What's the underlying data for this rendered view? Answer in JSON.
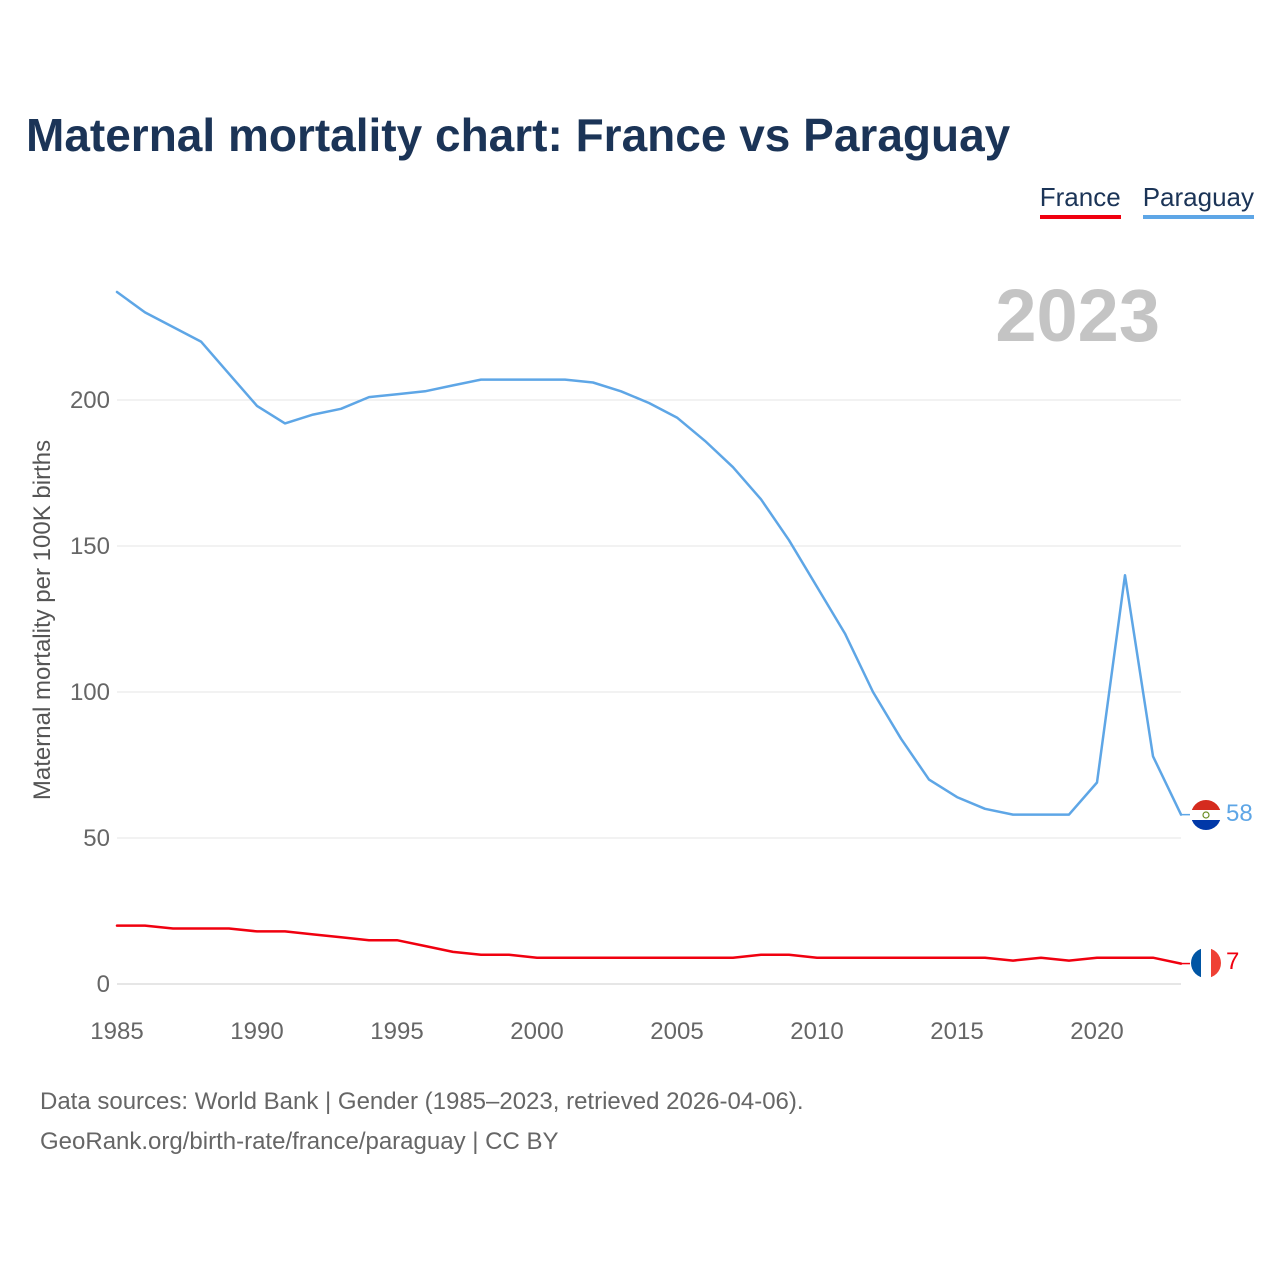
{
  "title": "Maternal mortality chart: France vs Paraguay",
  "year_watermark": "2023",
  "legend": [
    {
      "label": "France",
      "color": "#f0000f"
    },
    {
      "label": "Paraguay",
      "color": "#5ea6e6"
    }
  ],
  "source_lines": [
    "Data sources: World Bank | Gender (1985–2023, retrieved 2026-04-06).",
    "GeoRank.org/birth-rate/france/paraguay | CC BY"
  ],
  "chart_data": {
    "type": "line",
    "title": "Maternal mortality chart: France vs Paraguay",
    "xlabel": "",
    "ylabel": "Maternal mortality per 100K births",
    "x": [
      1985,
      1986,
      1987,
      1988,
      1989,
      1990,
      1991,
      1992,
      1993,
      1994,
      1995,
      1996,
      1997,
      1998,
      1999,
      2000,
      2001,
      2002,
      2003,
      2004,
      2005,
      2006,
      2007,
      2008,
      2009,
      2010,
      2011,
      2012,
      2013,
      2014,
      2015,
      2016,
      2017,
      2018,
      2019,
      2020,
      2021,
      2022,
      2023
    ],
    "xlim": [
      1985,
      2023
    ],
    "ylim": [
      0,
      237
    ],
    "x_ticks": [
      "1985",
      "1990",
      "1995",
      "2000",
      "2005",
      "2010",
      "2015",
      "2020"
    ],
    "y_ticks": [
      "0",
      "50",
      "100",
      "150",
      "200"
    ],
    "grid": true,
    "series": [
      {
        "name": "France",
        "color": "#f0000f",
        "end_label": "7",
        "values": [
          20,
          20,
          19,
          19,
          19,
          18,
          18,
          17,
          16,
          15,
          15,
          13,
          11,
          10,
          10,
          9,
          9,
          9,
          9,
          9,
          9,
          9,
          9,
          10,
          10,
          9,
          9,
          9,
          9,
          9,
          9,
          9,
          8,
          9,
          8,
          9,
          9,
          9,
          7
        ]
      },
      {
        "name": "Paraguay",
        "color": "#5ea6e6",
        "end_label": "58",
        "values": [
          237,
          230,
          225,
          220,
          209,
          198,
          192,
          195,
          197,
          201,
          202,
          203,
          205,
          207,
          207,
          207,
          207,
          206,
          203,
          199,
          194,
          186,
          177,
          166,
          152,
          136,
          120,
          100,
          84,
          70,
          64,
          60,
          58,
          58,
          58,
          69,
          140,
          78,
          58
        ]
      }
    ]
  }
}
